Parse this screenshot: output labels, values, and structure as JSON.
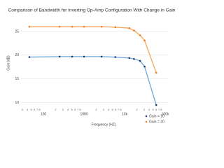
{
  "chart_data": {
    "type": "line",
    "title": "Comparison of Bandwidth for Inverting Op-Amp Configuration With Change in Gain",
    "x_label": "Frequency (HZ)",
    "y_label": "Gain (dB)",
    "x": [
      45,
      250,
      510,
      1000,
      2700,
      5900,
      13000,
      17000,
      24000,
      31000,
      60000
    ],
    "series": [
      {
        "name": "Gain = 10",
        "color": "#1f3a6e",
        "line_color": "#6fa8d6",
        "values": [
          19.6,
          19.7,
          19.7,
          19.7,
          19.7,
          19.6,
          19.4,
          19.2,
          18.8,
          17.6,
          9.5
        ]
      },
      {
        "name": "Gain = 20",
        "color": "#f07f1e",
        "line_color": "#f5a65b",
        "values": [
          26,
          26,
          26,
          26,
          26,
          25.9,
          25.7,
          25.2,
          24.2,
          23.1,
          16.3
        ]
      }
    ],
    "xscale": "log",
    "xlim": [
      28,
      117000
    ],
    "xticks": [
      100,
      1000,
      {
        "value": 10000,
        "label": "10k"
      },
      {
        "value": 100000,
        "label": "100k"
      }
    ],
    "xminorticks": [
      {
        "value": 30,
        "label": "3"
      },
      {
        "value": 40,
        "label": "4"
      },
      {
        "value": 50,
        "label": "5"
      },
      {
        "value": 60,
        "label": "6"
      },
      {
        "value": 70,
        "label": "7"
      },
      {
        "value": 80,
        "label": "8"
      },
      {
        "value": 200,
        "label": "2"
      },
      {
        "value": 300,
        "label": "3"
      },
      {
        "value": 400,
        "label": "4"
      },
      {
        "value": 500,
        "label": "5"
      },
      {
        "value": 600,
        "label": "6"
      },
      {
        "value": 700,
        "label": "7"
      },
      {
        "value": 800,
        "label": "8"
      },
      {
        "value": 2000,
        "label": "2"
      },
      {
        "value": 3000,
        "label": "3"
      },
      {
        "value": 4000,
        "label": "4"
      },
      {
        "value": 5000,
        "label": "5"
      },
      {
        "value": 6000,
        "label": "6"
      },
      {
        "value": 7000,
        "label": "7"
      },
      {
        "value": 8000,
        "label": "8"
      },
      {
        "value": 20000,
        "label": "2"
      },
      {
        "value": 30000,
        "label": "3"
      },
      {
        "value": 40000,
        "label": "4"
      },
      {
        "value": 50000,
        "label": "5"
      },
      {
        "value": 60000,
        "label": "6"
      },
      {
        "value": 70000,
        "label": "7"
      },
      {
        "value": 80000,
        "label": "8"
      }
    ],
    "ylim": [
      9.5,
      27.5
    ],
    "yticks": [
      10,
      15,
      20,
      25
    ],
    "grid": true
  }
}
